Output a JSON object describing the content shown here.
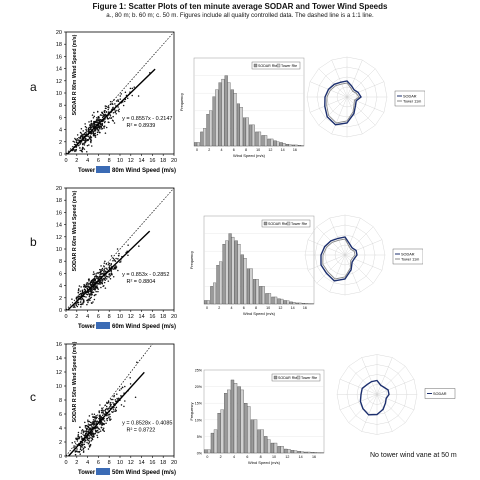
{
  "figure": {
    "title": "Figure 1: Scatter Plots of ten minute average SODAR and Tower Wind Speeds",
    "subtitle": "a., 80 m; b. 60 m; c. 50 m. Figures include all quality controlled data. The dashed line is a 1:1 line.",
    "note": "No tower wind vane at 50 m"
  },
  "rows": [
    {
      "label": "a"
    },
    {
      "label": "b"
    },
    {
      "label": "c"
    }
  ],
  "chart_data": [
    {
      "panel": "a-scatter",
      "type": "scatter",
      "xlabel_prefix": "Tower",
      "xlabel_suffix": "80m Wind Speed (m/s)",
      "ylabel": "SODAR R 80m  Wind Speed (m/s)",
      "xlim": [
        0,
        20
      ],
      "ylim": [
        0,
        20
      ],
      "xticks": [
        "0",
        "2",
        "4",
        "6",
        "8",
        "10",
        "12",
        "14",
        "16",
        "18",
        "20"
      ],
      "yticks": [
        "0",
        "2",
        "4",
        "6",
        "8",
        "10",
        "12",
        "14",
        "16",
        "18",
        "20"
      ],
      "equation": "y = 0.8557x - 0.2147",
      "r2": "R² = 0.8939",
      "fit": {
        "slope": 0.8557,
        "intercept": -0.2147,
        "xmax": 16.5
      },
      "one_to_one": true
    },
    {
      "panel": "b-scatter",
      "type": "scatter",
      "xlabel_prefix": "Tower",
      "xlabel_suffix": "60m Wind Speed (m/s)",
      "ylabel": "SODAR R 60m Wind Speed (m/s)",
      "xlim": [
        0,
        20
      ],
      "ylim": [
        0,
        20
      ],
      "xticks": [
        "0",
        "2",
        "4",
        "6",
        "8",
        "10",
        "12",
        "14",
        "16",
        "18",
        "20"
      ],
      "yticks": [
        "0",
        "2",
        "4",
        "6",
        "8",
        "10",
        "12",
        "14",
        "16",
        "18",
        "20"
      ],
      "equation": "y = 0.853x - 0.2852",
      "r2": "R² = 0.8804",
      "fit": {
        "slope": 0.853,
        "intercept": -0.2852,
        "xmax": 15.5
      },
      "one_to_one": true
    },
    {
      "panel": "c-scatter",
      "type": "scatter",
      "xlabel_prefix": "Tower",
      "xlabel_suffix": "50m Wind Speed (m/s)",
      "ylabel": "SODAR R 50m Wind Speed (m/s)",
      "xlim": [
        0,
        20
      ],
      "ylim": [
        0,
        16
      ],
      "xticks": [
        "0",
        "2",
        "4",
        "6",
        "8",
        "10",
        "12",
        "14",
        "16",
        "18",
        "20"
      ],
      "yticks": [
        "0",
        "2",
        "4",
        "6",
        "8",
        "10",
        "12",
        "14",
        "16"
      ],
      "equation": "y = 0.8528x - 0.4085",
      "r2": "R² = 0.8722",
      "fit": {
        "slope": 0.8528,
        "intercept": -0.4085,
        "xmax": 14.5
      },
      "one_to_one": true
    },
    {
      "panel": "a-histogram",
      "type": "bar",
      "legend": [
        "SODAR Rte",
        "Tower Rte"
      ],
      "xlabel": "Wind Speed (m/s)",
      "ylabel": "Frequency",
      "categories": [
        "0",
        "1",
        "2",
        "3",
        "4",
        "5",
        "6",
        "7",
        "8",
        "9",
        "10",
        "11",
        "12",
        "13",
        "14",
        "15",
        "16",
        "17"
      ],
      "series": [
        {
          "values": [
            1,
            4,
            9,
            14,
            18,
            20,
            16,
            12,
            8,
            6,
            4,
            3,
            2,
            1.5,
            1,
            0.5,
            0.3,
            0.2
          ]
        },
        {
          "values": [
            1,
            5,
            10,
            16,
            19,
            18,
            15,
            11,
            8,
            6,
            4,
            3,
            2,
            1.2,
            0.8,
            0.4,
            0.3,
            0.1
          ]
        }
      ],
      "ylim": [
        0,
        25
      ]
    },
    {
      "panel": "b-histogram",
      "type": "bar",
      "legend": [
        "SODAR Rte",
        "Tower Rte"
      ],
      "xlabel": "Wind Speed (m/s)",
      "ylabel": "Frequency",
      "categories": [
        "0",
        "1",
        "2",
        "3",
        "4",
        "5",
        "6",
        "7",
        "8",
        "9",
        "10",
        "11",
        "12",
        "13",
        "14",
        "15",
        "16",
        "17"
      ],
      "series": [
        {
          "values": [
            1,
            5,
            11,
            17,
            20,
            18,
            14,
            10,
            7,
            5,
            3,
            2,
            1.5,
            1,
            0.6,
            0.3,
            0.2,
            0.1
          ]
        },
        {
          "values": [
            1,
            6,
            12,
            18,
            19,
            17,
            13,
            10,
            7,
            5,
            3,
            2,
            1.4,
            0.9,
            0.5,
            0.3,
            0.2,
            0.1
          ]
        }
      ],
      "ylim": [
        0,
        25
      ]
    },
    {
      "panel": "c-histogram",
      "type": "bar",
      "legend": [
        "SODAR Rte",
        "Tower Rte"
      ],
      "xlabel": "Wind Speed (m/s)",
      "ylabel": "Frequency",
      "yticks": [
        "0%",
        "5%",
        "10%",
        "15%",
        "20%",
        "25%"
      ],
      "categories": [
        "0",
        "1",
        "2",
        "3",
        "4",
        "5",
        "6",
        "7",
        "8",
        "9",
        "10",
        "11",
        "12",
        "13",
        "14",
        "15",
        "16",
        "17"
      ],
      "series": [
        {
          "values": [
            1,
            6,
            12,
            18,
            22,
            20,
            15,
            10,
            7,
            5,
            3,
            2,
            1.2,
            0.8,
            0.5,
            0.3,
            0.2,
            0.1
          ]
        },
        {
          "values": [
            1,
            7,
            13,
            19,
            21,
            19,
            14,
            10,
            7,
            4,
            3,
            2,
            1.1,
            0.7,
            0.4,
            0.3,
            0.2,
            0.1
          ]
        }
      ],
      "ylim": [
        0,
        25
      ]
    },
    {
      "panel": "a-rose",
      "type": "line",
      "legend": [
        "SODAR",
        "Tower 11m"
      ],
      "directions": 16,
      "rlim": [
        0,
        20
      ],
      "series": [
        {
          "values": [
            8,
            6,
            5,
            6,
            7,
            5,
            6,
            9,
            13,
            15,
            14,
            12,
            11,
            10,
            9,
            8
          ]
        },
        {
          "values": [
            7,
            5,
            4,
            5,
            6,
            4,
            5,
            8,
            12,
            14,
            13,
            11,
            10,
            9,
            8,
            7
          ]
        }
      ]
    },
    {
      "panel": "b-rose",
      "type": "line",
      "legend": [
        "SODAR",
        "Tower 11m"
      ],
      "directions": 16,
      "rlim": [
        0,
        20
      ],
      "series": [
        {
          "values": [
            9,
            6,
            5,
            6,
            6,
            5,
            5,
            8,
            12,
            14,
            13,
            13,
            12,
            11,
            10,
            9
          ]
        },
        {
          "values": [
            8,
            5,
            4,
            5,
            5,
            4,
            4,
            7,
            11,
            13,
            12,
            12,
            11,
            10,
            9,
            8
          ]
        }
      ]
    },
    {
      "panel": "c-rose",
      "type": "line",
      "legend": [
        "SODAR"
      ],
      "directions": 16,
      "rlim": [
        0,
        20
      ],
      "series": [
        {
          "values": [
            7,
            5,
            5,
            6,
            6,
            5,
            6,
            8,
            10,
            11,
            10,
            9,
            8,
            8,
            7,
            7
          ]
        }
      ]
    }
  ],
  "colors": {
    "points": "#111111",
    "fitline": "#000000",
    "tower_box": "#3b6bb5",
    "bar_fill": "#9a9a9a",
    "bar_stroke": "#333333",
    "rose_primary": "#1c2f6e",
    "rose_secondary": "#888888",
    "grid": "#cfcfcf"
  }
}
